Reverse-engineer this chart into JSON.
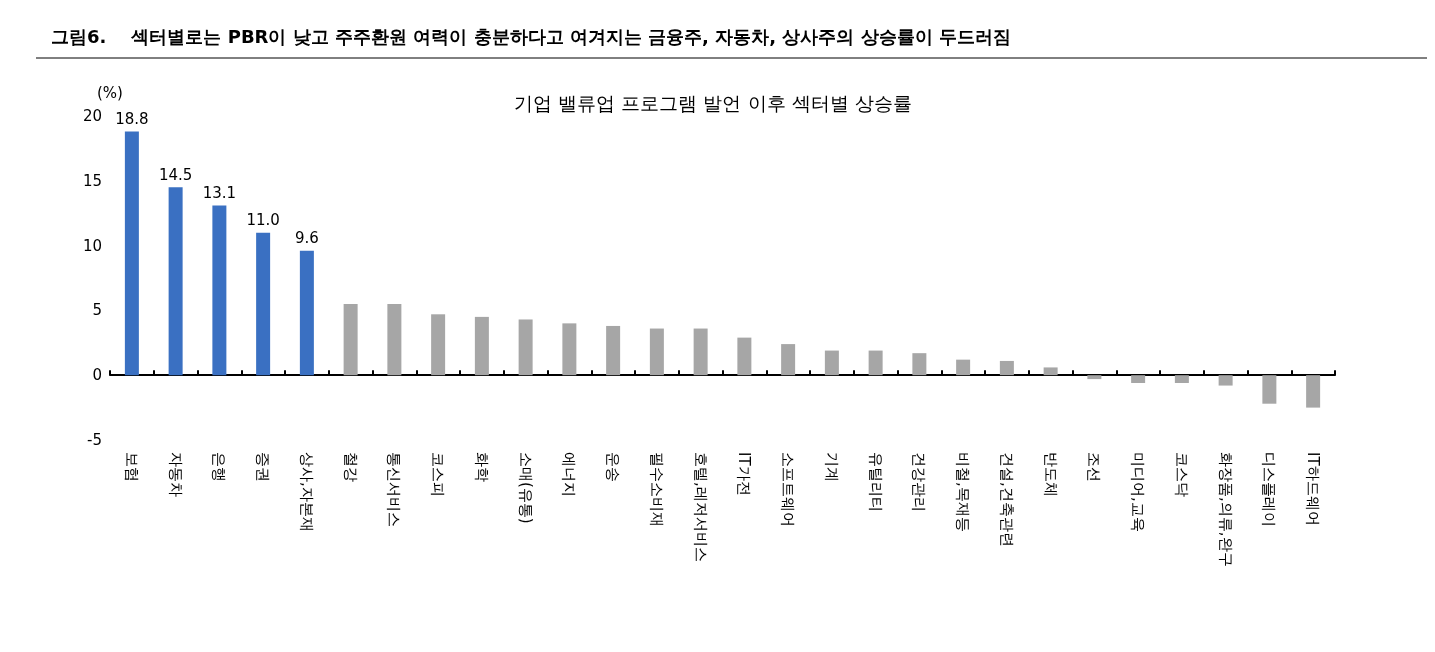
{
  "chart_data": {
    "type": "bar",
    "title": "그림6.    섹터별로는 PBR이 낮고 주주환원 여력이 충분하다고 여겨지는 금융주, 자동차, 상사주의 상승률이 두드러짐",
    "subtitle": "기업 밸류업 프로그램 발언 이후 섹터별 상승률",
    "ylabel": "(%)",
    "categories": [
      "보험",
      "자동차",
      "은행",
      "증권",
      "상사,자본재",
      "철강",
      "통신서비스",
      "코스피",
      "화학",
      "소매(유통)",
      "에너지",
      "운송",
      "필수소비재",
      "호텔,레저서비스",
      "IT가전",
      "소프트웨어",
      "기계",
      "유틸리티",
      "건강관리",
      "비철,목재등",
      "건설,건축관련",
      "반도체",
      "조선",
      "미디어,교육",
      "코스닥",
      "화장품,의류,완구",
      "디스플레이",
      "IT하드웨어"
    ],
    "values": [
      18.8,
      14.5,
      13.1,
      11.0,
      9.6,
      5.5,
      5.5,
      4.7,
      4.5,
      4.3,
      4.0,
      3.8,
      3.6,
      3.6,
      2.9,
      2.4,
      1.9,
      1.9,
      1.7,
      1.2,
      1.1,
      0.6,
      -0.3,
      -0.6,
      -0.6,
      -0.8,
      -2.2,
      -2.5
    ],
    "colors": [
      "#3a70c2",
      "#3a70c2",
      "#3a70c2",
      "#3a70c2",
      "#3a70c2",
      "#a6a6a6",
      "#a6a6a6",
      "#a6a6a6",
      "#a6a6a6",
      "#a6a6a6",
      "#a6a6a6",
      "#a6a6a6",
      "#a6a6a6",
      "#a6a6a6",
      "#a6a6a6",
      "#a6a6a6",
      "#a6a6a6",
      "#a6a6a6",
      "#a6a6a6",
      "#a6a6a6",
      "#a6a6a6",
      "#a6a6a6",
      "#a6a6a6",
      "#a6a6a6",
      "#a6a6a6",
      "#a6a6a6",
      "#a6a6a6",
      "#a6a6a6"
    ],
    "value_labels": [
      "18.8",
      "14.5",
      "13.1",
      "11.0",
      "9.6",
      null,
      null,
      null,
      null,
      null,
      null,
      null,
      null,
      null,
      null,
      null,
      null,
      null,
      null,
      null,
      null,
      null,
      null,
      null,
      null,
      null,
      null,
      null
    ],
    "ylim": [
      -5,
      20
    ],
    "yticks": [
      -5,
      0,
      5,
      10,
      15,
      20
    ]
  }
}
